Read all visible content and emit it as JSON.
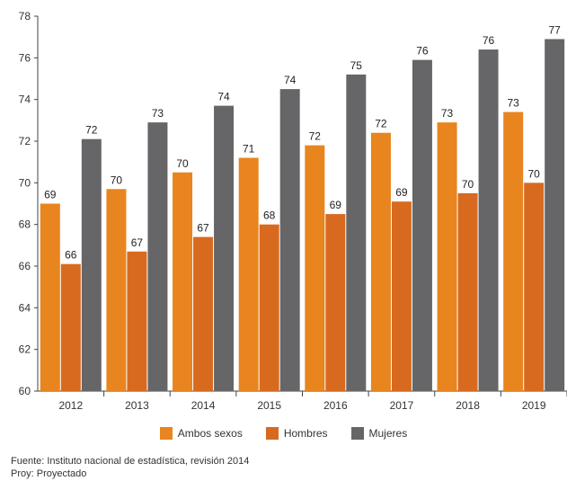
{
  "chart_data": {
    "type": "bar",
    "categories": [
      "2012",
      "2013",
      "2014",
      "2015",
      "2016",
      "2017",
      "2018",
      "2019"
    ],
    "series": [
      {
        "name": "Ambos sexos",
        "color": "#E8851E",
        "values": [
          69.0,
          69.7,
          70.5,
          71.2,
          71.8,
          72.4,
          72.9,
          73.4
        ],
        "labels": [
          "69",
          "70",
          "70",
          "71",
          "72",
          "72",
          "73",
          "73"
        ]
      },
      {
        "name": "Hombres",
        "color": "#D86A20",
        "values": [
          66.1,
          66.7,
          67.4,
          68.0,
          68.5,
          69.1,
          69.5,
          70.0
        ],
        "labels": [
          "66",
          "67",
          "67",
          "68",
          "69",
          "69",
          "70",
          "70"
        ]
      },
      {
        "name": "Mujeres",
        "color": "#666669",
        "values": [
          72.1,
          72.9,
          73.7,
          74.5,
          75.2,
          75.9,
          76.4,
          76.9
        ],
        "labels": [
          "72",
          "73",
          "74",
          "74",
          "75",
          "76",
          "76",
          "77"
        ]
      }
    ],
    "yticks": [
      60,
      62,
      64,
      66,
      68,
      70,
      72,
      74,
      76,
      78
    ],
    "ylim": [
      60,
      78
    ],
    "grid": false,
    "legend_position": "bottom"
  },
  "notes": {
    "source": "Fuente: Instituto nacional de estadística, revisión 2014",
    "proy": "Proy: Proyectado"
  }
}
